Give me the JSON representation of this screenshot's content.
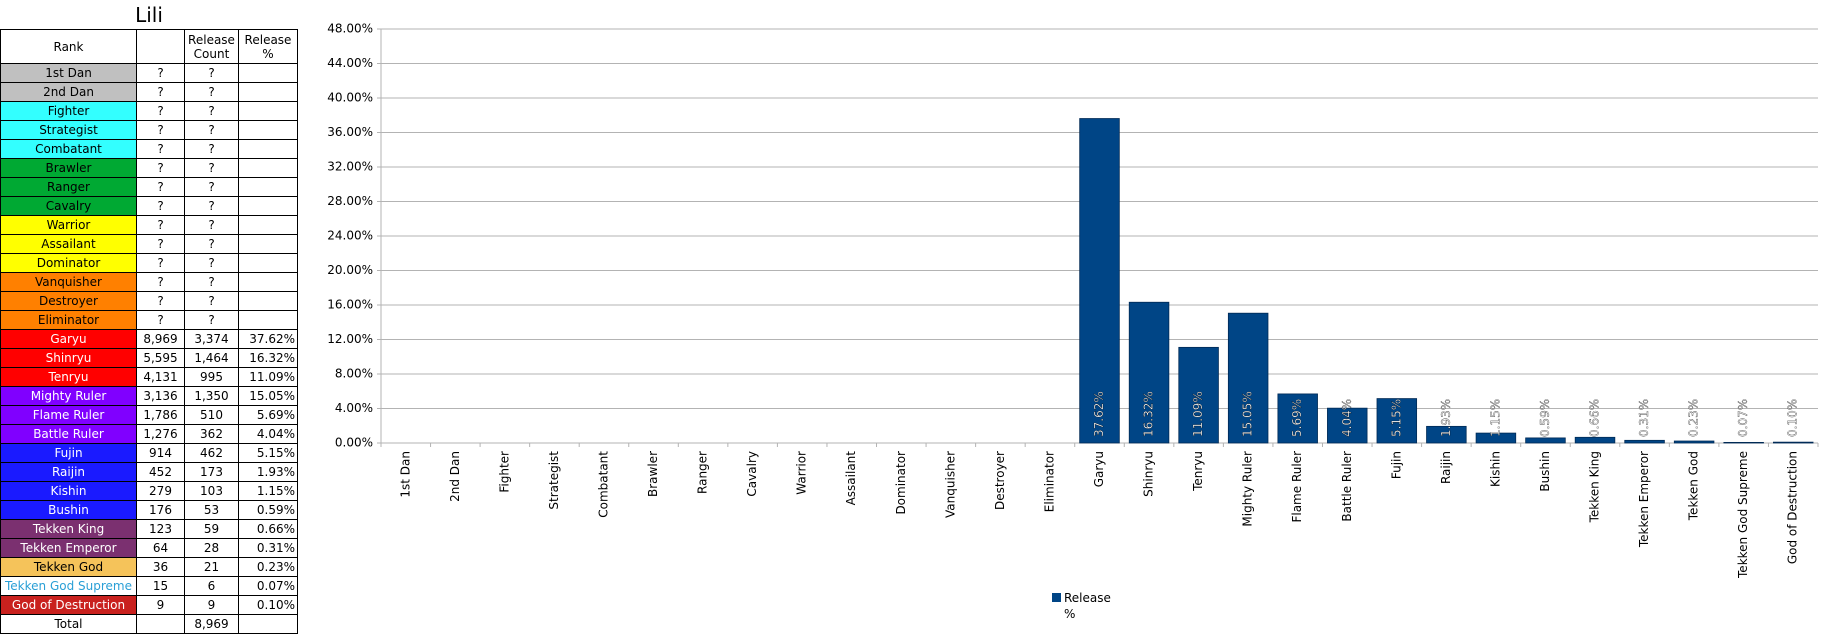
{
  "table": {
    "title": "Lili",
    "header": {
      "rank": "Rank",
      "count": "Release Count",
      "percent": "Release %"
    },
    "rows": [
      [
        "1st Dan",
        "?",
        "?"
      ],
      [
        "2nd Dan",
        "?",
        "?"
      ],
      [
        "Fighter",
        "?",
        "?"
      ],
      [
        "Strategist",
        "?",
        "?"
      ],
      [
        "Combatant",
        "?",
        "?"
      ],
      [
        "Brawler",
        "?",
        "?"
      ],
      [
        "Ranger",
        "?",
        "?"
      ],
      [
        "Cavalry",
        "?",
        "?"
      ],
      [
        "Warrior",
        "?",
        "?"
      ],
      [
        "Assailant",
        "?",
        "?"
      ],
      [
        "Dominator",
        "?",
        "?"
      ],
      [
        "Vanquisher",
        "?",
        "?"
      ],
      [
        "Destroyer",
        "?",
        "?"
      ],
      [
        "Eliminator",
        "?",
        "?"
      ],
      [
        "Garyu",
        "8,969",
        "3,374",
        "37.62%"
      ],
      [
        "Shinryu",
        "5,595",
        "1,464",
        "16.32%"
      ],
      [
        "Tenryu",
        "4,131",
        "995",
        "11.09%"
      ],
      [
        "Mighty Ruler",
        "3,136",
        "1,350",
        "15.05%"
      ],
      [
        "Flame Ruler",
        "1,786",
        "510",
        "5.69%"
      ],
      [
        "Battle Ruler",
        "1,276",
        "362",
        "4.04%"
      ],
      [
        "Fujin",
        "914",
        "462",
        "5.15%"
      ],
      [
        "Raijin",
        "452",
        "173",
        "1.93%"
      ],
      [
        "Kishin",
        "279",
        "103",
        "1.15%"
      ],
      [
        "Bushin",
        "176",
        "53",
        "0.59%"
      ],
      [
        "Tekken King",
        "123",
        "59",
        "0.66%"
      ],
      [
        "Tekken Emperor",
        "64",
        "28",
        "0.31%"
      ],
      [
        "Tekken God",
        "36",
        "21",
        "0.23%"
      ],
      [
        "Tekken God Supreme",
        "15",
        "6",
        "0.07%"
      ],
      [
        "God of Destruction",
        "9",
        "9",
        "0.10%"
      ]
    ],
    "total": {
      "label": "Total",
      "count": "8,969"
    }
  },
  "chart_data": {
    "type": "bar",
    "categories": [
      "1st Dan",
      "2nd Dan",
      "Fighter",
      "Strategist",
      "Combatant",
      "Brawler",
      "Ranger",
      "Cavalry",
      "Warrior",
      "Assailant",
      "Dominator",
      "Vanquisher",
      "Destroyer",
      "Eliminator",
      "Garyu",
      "Shinryu",
      "Tenryu",
      "Mighty Ruler",
      "Flame Ruler",
      "Battle Ruler",
      "Fujin",
      "Raijin",
      "Kishin",
      "Bushin",
      "Tekken King",
      "Tekken Emperor",
      "Tekken God",
      "Tekken God Supreme",
      "God of Destruction"
    ],
    "series": [
      {
        "name": "Release %",
        "color": "#004586",
        "values": [
          null,
          null,
          null,
          null,
          null,
          null,
          null,
          null,
          null,
          null,
          null,
          null,
          null,
          null,
          37.62,
          16.32,
          11.09,
          15.05,
          5.69,
          4.04,
          5.15,
          1.93,
          1.15,
          0.59,
          0.66,
          0.31,
          0.23,
          0.07,
          0.1
        ],
        "value_labels": [
          null,
          null,
          null,
          null,
          null,
          null,
          null,
          null,
          null,
          null,
          null,
          null,
          null,
          null,
          "37.62%",
          "16.32%",
          "11.09%",
          "15.05%",
          "5.69%",
          "4.04%",
          "5.15%",
          "1.93%",
          "1.15%",
          "0.59%",
          "0.66%",
          "0.31%",
          "0.23%",
          "0.07%",
          "0.10%"
        ]
      }
    ],
    "ylim": [
      0,
      48
    ],
    "yticks": [
      {
        "value": 0,
        "label": "0.00%"
      },
      {
        "value": 4,
        "label": "4.00%"
      },
      {
        "value": 8,
        "label": "8.00%"
      },
      {
        "value": 12,
        "label": "12.00%"
      },
      {
        "value": 16,
        "label": "16.00%"
      },
      {
        "value": 20,
        "label": "20.00%"
      },
      {
        "value": 24,
        "label": "24.00%"
      },
      {
        "value": 28,
        "label": "28.00%"
      },
      {
        "value": 32,
        "label": "32.00%"
      },
      {
        "value": 36,
        "label": "36.00%"
      },
      {
        "value": 40,
        "label": "40.00%"
      },
      {
        "value": 44,
        "label": "44.00%"
      },
      {
        "value": 48,
        "label": "48.00%"
      }
    ],
    "grid": true
  }
}
